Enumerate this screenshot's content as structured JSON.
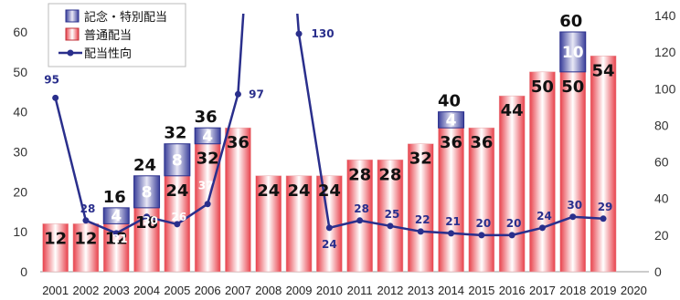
{
  "chart_data": {
    "type": "bar",
    "categories": [
      "2001",
      "2002",
      "2003",
      "2004",
      "2005",
      "2006",
      "2007",
      "2008",
      "2009",
      "2010",
      "2011",
      "2012",
      "2013",
      "2014",
      "2015",
      "2016",
      "2017",
      "2018",
      "2019",
      "2020"
    ],
    "series": [
      {
        "name": "普通配当",
        "type": "bar",
        "axis": "left",
        "values": [
          12,
          12,
          12,
          16,
          24,
          32,
          36,
          24,
          24,
          24,
          28,
          28,
          32,
          36,
          36,
          44,
          50,
          50,
          54,
          null
        ],
        "labels": [
          "12",
          "12",
          "12",
          "16",
          "24",
          "32",
          "36",
          "24",
          "24",
          "24",
          "28",
          "28",
          "32",
          "36",
          "36",
          "44",
          "50",
          "50",
          "54",
          ""
        ]
      },
      {
        "name": "記念・特別配当",
        "type": "bar",
        "stacked": true,
        "axis": "left",
        "values": [
          null,
          null,
          4,
          8,
          8,
          4,
          null,
          null,
          null,
          null,
          null,
          null,
          null,
          4,
          null,
          null,
          null,
          10,
          null,
          null
        ],
        "labels": [
          "",
          "",
          "4",
          "8",
          "8",
          "4",
          "",
          "",
          "",
          "",
          "",
          "",
          "",
          "4",
          "",
          "",
          "",
          "10",
          "",
          ""
        ]
      },
      {
        "name": "配当性向",
        "type": "line",
        "axis": "right",
        "values": [
          95,
          28,
          21,
          30,
          26,
          37,
          97,
          null,
          130,
          24,
          28,
          25,
          22,
          21,
          20,
          20,
          24,
          30,
          29,
          null
        ],
        "labels": [
          "95",
          "28",
          "21",
          "30",
          "26",
          "37",
          "97",
          "",
          "130",
          "24",
          "28",
          "25",
          "22",
          "21",
          "20",
          "20",
          "24",
          "30",
          "29",
          ""
        ]
      }
    ],
    "totals": [
      "",
      "",
      "16",
      "24",
      "32",
      "36",
      "",
      "",
      "",
      "",
      "",
      "",
      "",
      "40",
      "",
      "",
      "",
      "60",
      "",
      ""
    ],
    "left_axis": {
      "ylim": [
        0,
        65
      ],
      "ticks": [
        0,
        10,
        20,
        30,
        40,
        50,
        60
      ]
    },
    "right_axis": {
      "ylim": [
        0,
        150
      ],
      "ticks": [
        0,
        20,
        40,
        60,
        80,
        100,
        120,
        140
      ]
    },
    "legend": {
      "position": "top-left",
      "entries": [
        "記念・特別配当",
        "普通配当",
        "配当性向"
      ]
    },
    "colors": {
      "regular_bar": "#e8404a",
      "regular_bar_light": "#ffffff",
      "special_bar": "#3a3f9a",
      "special_bar_light": "#e8e8f6",
      "line": "#2a2f8c",
      "ratio_text": "#2a2f8c"
    }
  }
}
